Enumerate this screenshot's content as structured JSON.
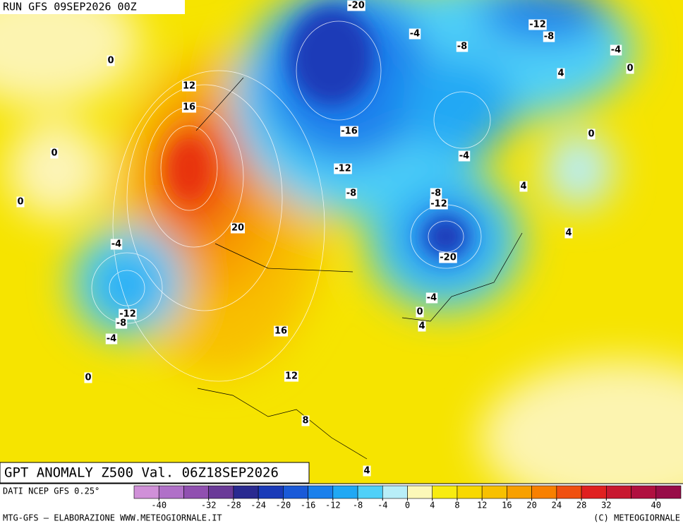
{
  "header": {
    "run": "RUN GFS 09SEP2026 00Z"
  },
  "map": {
    "title": "GPT ANOMALY Z500 Val. 06Z18SEP2026",
    "contour_labels": [
      -20,
      -4,
      -12,
      -8,
      -8,
      -4,
      0,
      4,
      0,
      12,
      16,
      -16,
      0,
      0,
      -4,
      -12,
      4,
      -8,
      -8,
      -12,
      0,
      20,
      4,
      -4,
      -20,
      -4,
      0,
      -12,
      -8,
      4,
      16,
      -4,
      12,
      0,
      8,
      4
    ]
  },
  "colorbar": {
    "source": "DATI NCEP GFS 0.25°",
    "range": [
      -44,
      44
    ],
    "colors": [
      "#d090d8",
      "#b070c8",
      "#9050b0",
      "#6a3a98",
      "#2a2a90",
      "#1a3ab8",
      "#1a5ad8",
      "#1a80ec",
      "#20a8f4",
      "#50d0f8",
      "#b8eef8",
      "#fcf8b8",
      "#f8ec10",
      "#f8d800",
      "#f8c000",
      "#f8a000",
      "#f88000",
      "#f05010",
      "#e02020",
      "#c81830",
      "#b01040",
      "#980c48"
    ],
    "ticks": [
      -40,
      -32,
      -28,
      -24,
      -20,
      -16,
      -12,
      -8,
      -4,
      0,
      4,
      8,
      12,
      16,
      20,
      24,
      28,
      32,
      40
    ]
  },
  "footer": {
    "left": "MTG-GFS – ELABORAZIONE WWW.METEOGIORNALE.IT",
    "right": "(C) METEOGIORNALE"
  }
}
